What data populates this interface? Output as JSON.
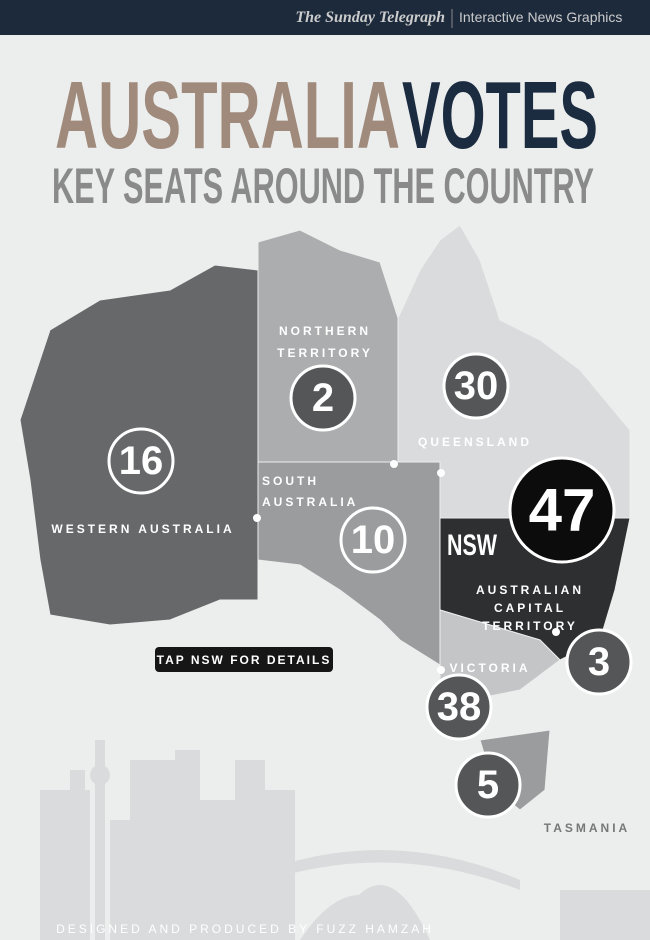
{
  "header": {
    "brand": "The Sunday Telegraph",
    "section": "Interactive News Graphics"
  },
  "title": {
    "part1": "AUSTRALIA",
    "part2": "VOTES"
  },
  "subtitle": "KEY SEATS AROUND THE COUNTRY",
  "regions": [
    {
      "name_lines": [
        "WESTERN AUSTRALIA"
      ],
      "seats": "16"
    },
    {
      "name_lines": [
        "NORTHERN",
        "TERRITORY"
      ],
      "seats": "2"
    },
    {
      "name_lines": [
        "SOUTH",
        "AUSTRALIA"
      ],
      "seats": "10"
    },
    {
      "name_lines": [
        "QUEENSLAND"
      ],
      "seats": "30"
    },
    {
      "name_lines": [
        "NSW"
      ],
      "seats": "47"
    },
    {
      "name_lines": [
        "AUSTRALIAN",
        "CAPITAL",
        "TERRITORY"
      ],
      "seats": "3"
    },
    {
      "name_lines": [
        "VICTORIA"
      ],
      "seats": "38"
    },
    {
      "name_lines": [
        "TASMANIA"
      ],
      "seats": "5"
    }
  ],
  "button": "TAP NSW FOR DETAILS",
  "footer": "DESIGNED AND PRODUCED BY FUZZ HAMZAH"
}
